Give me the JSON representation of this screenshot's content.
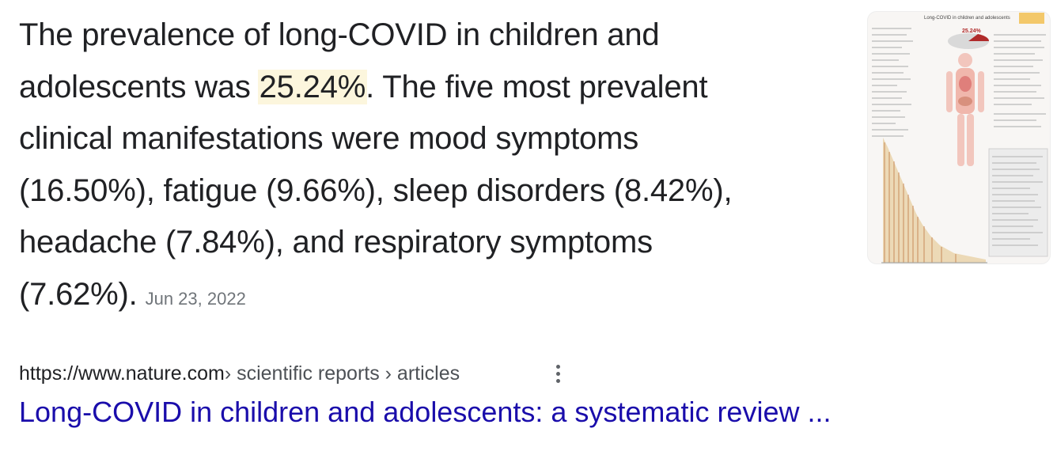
{
  "snippet": {
    "line1": "The prevalence of long-COVID in children and",
    "line2_pre": "adolescents was ",
    "highlight": "25.24%",
    "line2_post": ". The five most prevalent",
    "line3": "clinical manifestations were mood symptoms",
    "line4": "(16.50%), fatigue (9.66%), sleep disorders (8.42%),",
    "line5": "headache (7.84%), and respiratory symptoms",
    "line6": "(7.62%).",
    "date": "Jun 23, 2022",
    "highlight_color": "#fcf6dd"
  },
  "thumbnail": {
    "title": "Long-COVID in children and adolescents",
    "stat": "25.24%",
    "accent": "#b02a2a"
  },
  "result": {
    "url_domain": "https://www.nature.com",
    "breadcrumb": " › scientific reports › articles",
    "more_icon": "three-dots-vertical-icon",
    "title": "Long-COVID in children and adolescents: a systematic review ...",
    "title_color": "#1a0dab"
  }
}
